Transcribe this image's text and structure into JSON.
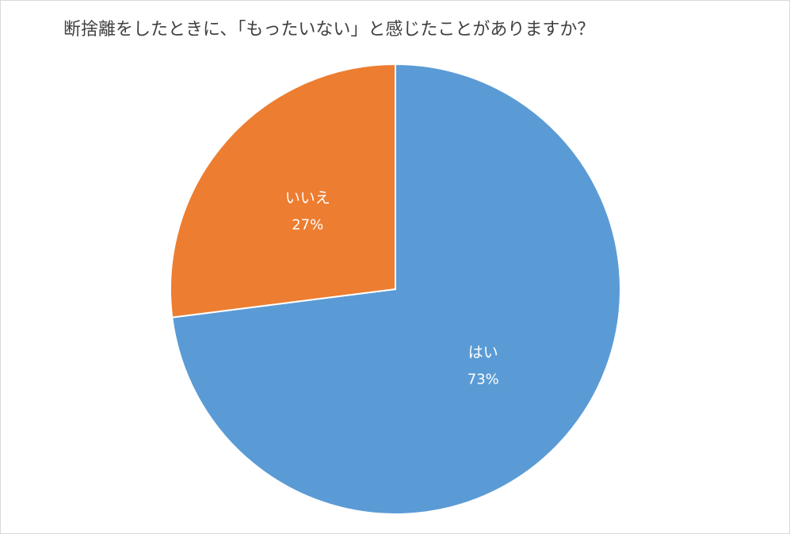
{
  "chart_data": {
    "type": "pie",
    "title": "断捨離をしたときに、「もったいない」と感じたことがありますか？",
    "categories": [
      "はい",
      "いいえ"
    ],
    "values": [
      73,
      27
    ],
    "value_labels": [
      "73%",
      "27%"
    ],
    "colors": [
      "#5b9bd5",
      "#ed7d31"
    ]
  }
}
